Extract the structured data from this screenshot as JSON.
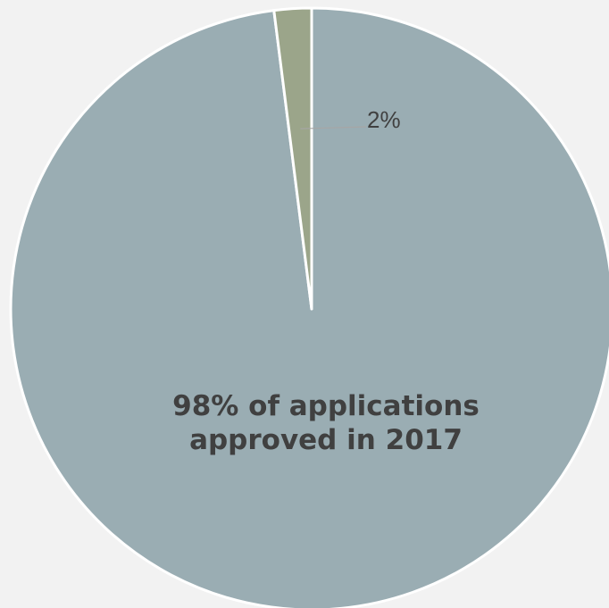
{
  "chart_data": {
    "type": "pie",
    "title": "",
    "slices": [
      {
        "label": "98% of applications approved in 2017",
        "label_lines": [
          "98% of applications",
          "approved in 2017"
        ],
        "value": 98,
        "color": "#9aadb3",
        "label_placement": "inside"
      },
      {
        "label": "2%",
        "label_lines": [
          "2%"
        ],
        "value": 2,
        "color": "#9ba58a",
        "label_placement": "outside-leader"
      }
    ],
    "start_angle_deg": 0,
    "direction": "clockwise",
    "legend": "none"
  }
}
